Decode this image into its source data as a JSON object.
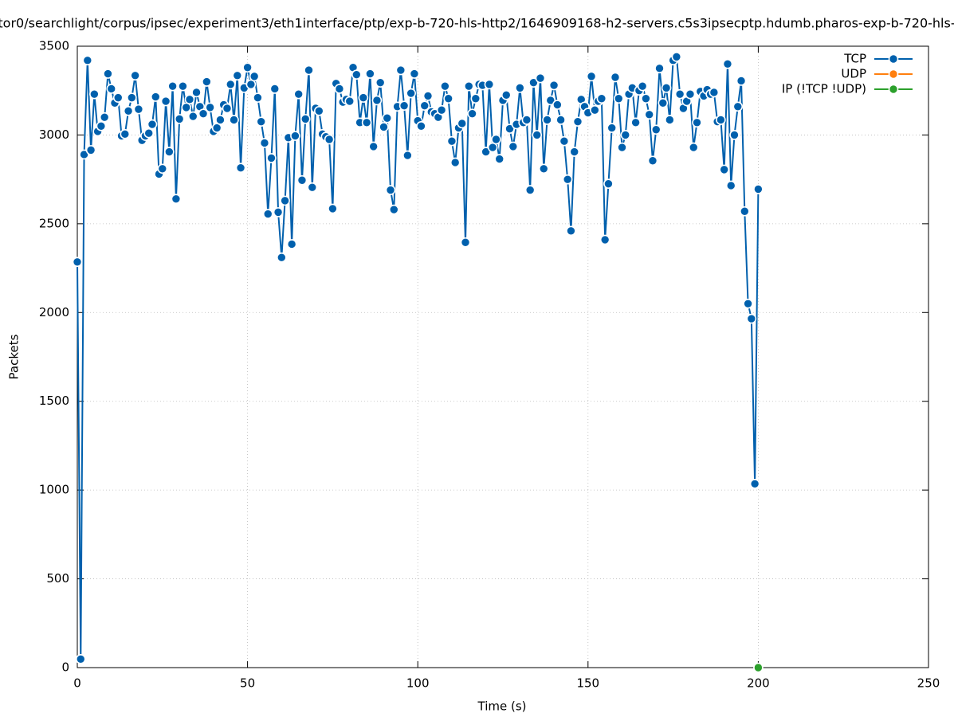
{
  "chart_data": {
    "type": "line",
    "title": "tor0/searchlight/corpus/ipsec/experiment3/eth1interface/ptp/exp-b-720-hls-http2/1646909168-h2-servers.c5s3ipsecptp.hdumb.pharos-exp-b-720-hls-",
    "x_label": "Time (s)",
    "y_label": "Packets",
    "xlim": [
      0,
      250
    ],
    "xticks": [
      0,
      50,
      100,
      150,
      200,
      250
    ],
    "ylim": [
      0,
      3500
    ],
    "yticks": [
      0,
      500,
      1000,
      1500,
      2000,
      2500,
      3000,
      3500
    ],
    "grid": true,
    "legend": "top-right",
    "series": [
      {
        "name": "TCP",
        "color": "#0060ad",
        "x": [
          0,
          1,
          2,
          3,
          4,
          5,
          6,
          7,
          8,
          9,
          10,
          11,
          12,
          13,
          14,
          15,
          16,
          17,
          18,
          19,
          20,
          21,
          22,
          23,
          24,
          25,
          26,
          27,
          28,
          29,
          30,
          31,
          32,
          33,
          34,
          35,
          36,
          37,
          38,
          39,
          40,
          41,
          42,
          43,
          44,
          45,
          46,
          47,
          48,
          49,
          50,
          51,
          52,
          53,
          54,
          55,
          56,
          57,
          58,
          59,
          60,
          61,
          62,
          63,
          64,
          65,
          66,
          67,
          68,
          69,
          70,
          71,
          72,
          73,
          74,
          75,
          76,
          77,
          78,
          79,
          80,
          81,
          82,
          83,
          84,
          85,
          86,
          87,
          88,
          89,
          90,
          91,
          92,
          93,
          94,
          95,
          96,
          97,
          98,
          99,
          100,
          101,
          102,
          103,
          104,
          105,
          106,
          107,
          108,
          109,
          110,
          111,
          112,
          113,
          114,
          115,
          116,
          117,
          118,
          119,
          120,
          121,
          122,
          123,
          124,
          125,
          126,
          127,
          128,
          129,
          130,
          131,
          132,
          133,
          134,
          135,
          136,
          137,
          138,
          139,
          140,
          141,
          142,
          143,
          144,
          145,
          146,
          147,
          148,
          149,
          150,
          151,
          152,
          153,
          154,
          155,
          156,
          157,
          158,
          159,
          160,
          161,
          162,
          163,
          164,
          165,
          166,
          167,
          168,
          169,
          170,
          171,
          172,
          173,
          174,
          175,
          176,
          177,
          178,
          179,
          180,
          181,
          182,
          183,
          184,
          185,
          186,
          187,
          188,
          189,
          190,
          191,
          192,
          193,
          194,
          195,
          196,
          197,
          198,
          199,
          200
        ],
        "values": [
          2285,
          48,
          2890,
          3420,
          2915,
          3230,
          3020,
          3050,
          3100,
          3345,
          3260,
          3180,
          3210,
          2995,
          3005,
          3135,
          3210,
          3335,
          3145,
          2970,
          2995,
          3010,
          3060,
          3215,
          2780,
          2810,
          3190,
          2905,
          3275,
          2640,
          3090,
          3275,
          3155,
          3200,
          3105,
          3240,
          3160,
          3120,
          3300,
          3155,
          3020,
          3040,
          3085,
          3170,
          3150,
          3285,
          3085,
          3335,
          2815,
          3265,
          3380,
          3285,
          3330,
          3210,
          3075,
          2955,
          2555,
          2870,
          3260,
          2565,
          2310,
          2630,
          2985,
          2385,
          2995,
          3230,
          2745,
          3090,
          3365,
          2705,
          3150,
          3135,
          3005,
          2990,
          2975,
          2585,
          3290,
          3260,
          3185,
          3200,
          3190,
          3380,
          3340,
          3070,
          3210,
          3070,
          3345,
          2935,
          3195,
          3295,
          3045,
          3095,
          2690,
          2580,
          3160,
          3365,
          3165,
          2885,
          3235,
          3345,
          3080,
          3050,
          3165,
          3220,
          3130,
          3120,
          3100,
          3140,
          3275,
          3205,
          2965,
          2845,
          3040,
          3065,
          2395,
          3275,
          3120,
          3205,
          3285,
          3280,
          2905,
          3285,
          2930,
          2975,
          2865,
          3195,
          3225,
          3035,
          2935,
          3060,
          3265,
          3070,
          3085,
          2690,
          3295,
          3000,
          3320,
          2810,
          3085,
          3195,
          3280,
          3170,
          3085,
          2965,
          2750,
          2460,
          2905,
          3075,
          3200,
          3160,
          3125,
          3330,
          3140,
          3190,
          3205,
          2410,
          2725,
          3040,
          3325,
          3205,
          2930,
          3000,
          3230,
          3265,
          3070,
          3250,
          3275,
          3205,
          3115,
          2855,
          3030,
          3375,
          3180,
          3265,
          3085,
          3420,
          3440,
          3230,
          3150,
          3190,
          3230,
          2930,
          3070,
          3245,
          3220,
          3255,
          3230,
          3240,
          3075,
          3085,
          2805,
          3400,
          2715,
          3000,
          3160,
          3305,
          2570,
          2050,
          1965,
          1035,
          2695
        ]
      },
      {
        "name": "UDP",
        "color": "#ff7f0e",
        "x": [],
        "values": []
      },
      {
        "name": "IP (!TCP  !UDP)",
        "color": "#2ca02c",
        "x": [
          200
        ],
        "values": [
          0
        ]
      }
    ]
  }
}
